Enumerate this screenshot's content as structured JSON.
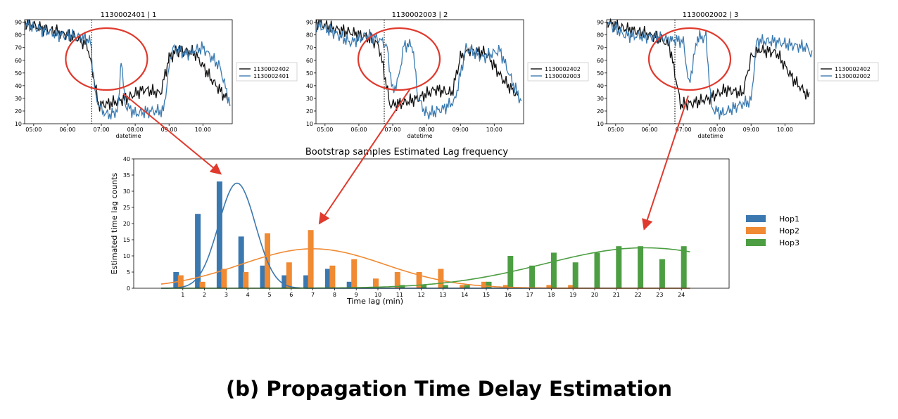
{
  "caption": "(b) Propagation Time Delay Estimation",
  "colors": {
    "black_series": "#111111",
    "blue_series": "#3a7ab0",
    "hop1": "#3b78b0",
    "hop2": "#f08a33",
    "hop3": "#4d9e43",
    "annotation": "#e03a2e"
  },
  "chart_data": [
    {
      "type": "line",
      "title": "1130002401 | 1",
      "xlabel": "datetime",
      "ylabel": "",
      "x_ticks": [
        "05:00",
        "06:00",
        "07:00",
        "08:00",
        "09:00",
        "10:00"
      ],
      "ylim": [
        10,
        92
      ],
      "y_ticks": [
        10,
        20,
        30,
        40,
        50,
        60,
        70,
        80,
        90
      ],
      "event_line_time": "06:43",
      "series": [
        {
          "name": "1130002402",
          "color": "black",
          "points": [
            [
              "04:45",
              90
            ],
            [
              "05:15",
              85
            ],
            [
              "05:45",
              82
            ],
            [
              "06:15",
              78
            ],
            [
              "06:35",
              72
            ],
            [
              "06:45",
              50
            ],
            [
              "06:55",
              25
            ],
            [
              "07:15",
              26
            ],
            [
              "07:45",
              30
            ],
            [
              "08:15",
              37
            ],
            [
              "08:45",
              34
            ],
            [
              "09:00",
              62
            ],
            [
              "09:15",
              68
            ],
            [
              "09:45",
              66
            ],
            [
              "10:15",
              45
            ],
            [
              "10:45",
              28
            ]
          ]
        },
        {
          "name": "1130002401",
          "color": "blue",
          "points": [
            [
              "04:45",
              88
            ],
            [
              "05:15",
              84
            ],
            [
              "05:45",
              80
            ],
            [
              "06:15",
              79
            ],
            [
              "06:40",
              76
            ],
            [
              "06:50",
              30
            ],
            [
              "07:05",
              18
            ],
            [
              "07:20",
              17
            ],
            [
              "07:30",
              22
            ],
            [
              "07:35",
              62
            ],
            [
              "07:42",
              25
            ],
            [
              "08:00",
              18
            ],
            [
              "08:30",
              20
            ],
            [
              "08:50",
              20
            ],
            [
              "09:05",
              70
            ],
            [
              "09:30",
              65
            ],
            [
              "10:00",
              70
            ],
            [
              "10:30",
              55
            ],
            [
              "10:50",
              22
            ]
          ]
        }
      ]
    },
    {
      "type": "line",
      "title": "1130002003 | 2",
      "xlabel": "datetime",
      "ylabel": "",
      "x_ticks": [
        "05:00",
        "06:00",
        "07:00",
        "08:00",
        "09:00",
        "10:00"
      ],
      "ylim": [
        10,
        92
      ],
      "y_ticks": [
        10,
        20,
        30,
        40,
        50,
        60,
        70,
        80,
        90
      ],
      "event_line_time": "06:45",
      "series": [
        {
          "name": "1130002402",
          "color": "black",
          "points": [
            [
              "04:45",
              90
            ],
            [
              "05:15",
              85
            ],
            [
              "05:45",
              82
            ],
            [
              "06:15",
              78
            ],
            [
              "06:35",
              72
            ],
            [
              "06:45",
              50
            ],
            [
              "06:55",
              25
            ],
            [
              "07:15",
              26
            ],
            [
              "07:45",
              30
            ],
            [
              "08:15",
              37
            ],
            [
              "08:45",
              34
            ],
            [
              "09:00",
              62
            ],
            [
              "09:15",
              68
            ],
            [
              "09:45",
              66
            ],
            [
              "10:15",
              45
            ],
            [
              "10:45",
              30
            ]
          ]
        },
        {
          "name": "1130002003",
          "color": "blue",
          "points": [
            [
              "04:45",
              88
            ],
            [
              "05:15",
              82
            ],
            [
              "05:45",
              74
            ],
            [
              "06:15",
              80
            ],
            [
              "06:40",
              76
            ],
            [
              "06:50",
              70
            ],
            [
              "07:00",
              35
            ],
            [
              "07:10",
              45
            ],
            [
              "07:20",
              72
            ],
            [
              "07:35",
              72
            ],
            [
              "07:45",
              30
            ],
            [
              "08:00",
              17
            ],
            [
              "08:30",
              22
            ],
            [
              "08:50",
              28
            ],
            [
              "09:10",
              70
            ],
            [
              "09:40",
              62
            ],
            [
              "10:10",
              68
            ],
            [
              "10:30",
              45
            ],
            [
              "10:50",
              25
            ]
          ]
        }
      ]
    },
    {
      "type": "line",
      "title": "1130002002 | 3",
      "xlabel": "datetime",
      "ylabel": "",
      "x_ticks": [
        "05:00",
        "06:00",
        "07:00",
        "08:00",
        "09:00",
        "10:00"
      ],
      "ylim": [
        10,
        92
      ],
      "y_ticks": [
        10,
        20,
        30,
        40,
        50,
        60,
        70,
        80,
        90
      ],
      "event_line_time": "06:45",
      "series": [
        {
          "name": "1130002402",
          "color": "black",
          "points": [
            [
              "04:45",
              90
            ],
            [
              "05:15",
              85
            ],
            [
              "05:45",
              82
            ],
            [
              "06:15",
              78
            ],
            [
              "06:35",
              72
            ],
            [
              "06:45",
              50
            ],
            [
              "06:55",
              25
            ],
            [
              "07:15",
              26
            ],
            [
              "07:45",
              30
            ],
            [
              "08:15",
              37
            ],
            [
              "08:45",
              34
            ],
            [
              "09:00",
              62
            ],
            [
              "09:15",
              68
            ],
            [
              "09:45",
              66
            ],
            [
              "10:15",
              45
            ],
            [
              "10:45",
              30
            ]
          ]
        },
        {
          "name": "1130002002",
          "color": "blue",
          "points": [
            [
              "04:45",
              90
            ],
            [
              "05:15",
              80
            ],
            [
              "05:45",
              79
            ],
            [
              "06:15",
              78
            ],
            [
              "06:40",
              76
            ],
            [
              "07:00",
              75
            ],
            [
              "07:10",
              40
            ],
            [
              "07:25",
              78
            ],
            [
              "07:40",
              78
            ],
            [
              "07:50",
              22
            ],
            [
              "08:10",
              18
            ],
            [
              "08:40",
              25
            ],
            [
              "09:00",
              28
            ],
            [
              "09:10",
              75
            ],
            [
              "09:40",
              75
            ],
            [
              "10:10",
              72
            ],
            [
              "10:40",
              70
            ],
            [
              "10:50",
              62
            ]
          ]
        }
      ]
    },
    {
      "type": "bar",
      "title": "Bootstrap samples Estimated Lag frequency",
      "xlabel": "Time lag (min)",
      "ylabel": "Estimated time lag counts",
      "ylim": [
        0,
        40
      ],
      "y_ticks": [
        0,
        5,
        10,
        15,
        20,
        25,
        30,
        35,
        40
      ],
      "categories": [
        "1",
        "2",
        "3",
        "4",
        "5",
        "6",
        "7",
        "8",
        "9",
        "10",
        "11",
        "12",
        "13",
        "14",
        "15",
        "16",
        "17",
        "18",
        "19",
        "20",
        "21",
        "22",
        "23",
        "24"
      ],
      "legend_position": "right",
      "series": [
        {
          "name": "Hop1",
          "color": "hop1",
          "values": [
            5,
            23,
            33,
            16,
            7,
            4,
            4,
            6,
            2,
            0,
            0,
            0,
            0,
            0,
            0,
            0,
            0,
            0,
            0,
            0,
            0,
            0,
            0,
            0
          ],
          "fit": {
            "mu": 3.5,
            "sigma": 0.85,
            "peak": 32.5
          }
        },
        {
          "name": "Hop2",
          "color": "hop2",
          "values": [
            4,
            2,
            6,
            5,
            17,
            8,
            18,
            7,
            9,
            3,
            5,
            5,
            6,
            1,
            2,
            1,
            0,
            1,
            1,
            0,
            0,
            0,
            0,
            0
          ],
          "fit": {
            "mu": 7.0,
            "sigma": 3.3,
            "peak": 12.2
          }
        },
        {
          "name": "Hop3",
          "color": "hop3",
          "values": [
            0,
            0,
            0,
            0,
            0,
            0,
            0,
            0,
            0,
            0,
            1,
            1,
            1,
            1,
            2,
            10,
            7,
            11,
            8,
            11,
            13,
            13,
            9,
            13
          ],
          "fit": {
            "mu": 22.3,
            "sigma": 4.6,
            "peak": 12.5
          }
        }
      ]
    }
  ]
}
